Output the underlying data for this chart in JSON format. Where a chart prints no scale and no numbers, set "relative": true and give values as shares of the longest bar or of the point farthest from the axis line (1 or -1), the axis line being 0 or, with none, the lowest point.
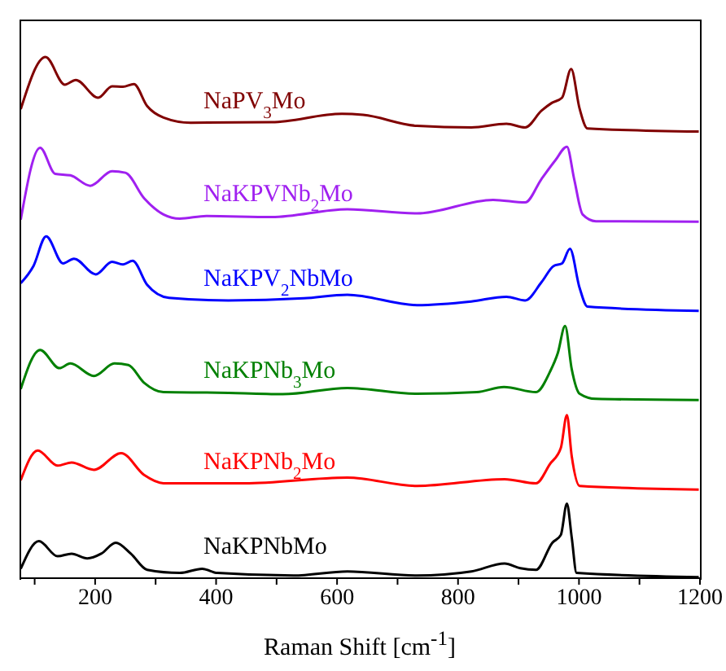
{
  "chart_data": {
    "type": "line",
    "relative": true,
    "xlabel": "Raman Shift [cm$^{-1}$]",
    "xlim": [
      75,
      1200
    ],
    "xticks": [
      {
        "value": 100,
        "label": null
      },
      200,
      {
        "value": 300,
        "label": null
      },
      400,
      {
        "value": 500,
        "label": null
      },
      600,
      {
        "value": 700,
        "label": null
      },
      800,
      {
        "value": 900,
        "label": null
      },
      1000,
      {
        "value": 1100,
        "label": null
      },
      1200
    ],
    "series": [
      {
        "name": "NaPV$_{3}$Mo",
        "color": "#800000",
        "x": [
          77,
          118,
          150,
          168,
          205,
          228,
          246,
          264,
          286,
          313,
          358,
          492,
          608,
          643,
          732,
          822,
          880,
          911,
          938,
          955,
          972,
          987,
          1001,
          1014,
          1198
        ],
        "values": [
          0.9,
          1.0,
          0.947,
          0.956,
          0.922,
          0.944,
          0.943,
          0.948,
          0.906,
          0.884,
          0.874,
          0.875,
          0.891,
          0.889,
          0.868,
          0.865,
          0.872,
          0.865,
          0.897,
          0.912,
          0.922,
          0.977,
          0.901,
          0.863,
          0.857
        ]
      },
      {
        "name": "NaKPVNb$_{2}$Mo",
        "color": "#a020f0",
        "x": [
          77,
          109,
          134,
          159,
          192,
          228,
          250,
          281,
          313,
          340,
          384,
          492,
          617,
          732,
          858,
          911,
          938,
          961,
          980,
          992,
          1006,
          1028,
          1198
        ],
        "values": [
          0.688,
          0.826,
          0.776,
          0.773,
          0.753,
          0.781,
          0.778,
          0.729,
          0.698,
          0.69,
          0.695,
          0.693,
          0.708,
          0.7,
          0.726,
          0.721,
          0.766,
          0.802,
          0.828,
          0.766,
          0.698,
          0.685,
          0.684
        ]
      },
      {
        "name": "NaKPV$_{2}$NbMo",
        "color": "#0000ff",
        "x": [
          77,
          98,
          119,
          147,
          165,
          201,
          228,
          246,
          262,
          286,
          322,
          420,
          545,
          617,
          732,
          822,
          880,
          911,
          938,
          958,
          972,
          985,
          1001,
          1014,
          1198
        ],
        "values": [
          0.566,
          0.599,
          0.656,
          0.604,
          0.613,
          0.583,
          0.607,
          0.602,
          0.609,
          0.563,
          0.538,
          0.533,
          0.537,
          0.544,
          0.524,
          0.531,
          0.54,
          0.533,
          0.568,
          0.599,
          0.604,
          0.632,
          0.557,
          0.521,
          0.513
        ]
      },
      {
        "name": "NaKPNb$_{3}$Mo",
        "color": "#008000",
        "x": [
          77,
          109,
          141,
          159,
          198,
          232,
          255,
          281,
          313,
          402,
          510,
          617,
          732,
          831,
          876,
          929,
          952,
          965,
          977,
          988,
          1001,
          1028,
          1198
        ],
        "values": [
          0.363,
          0.438,
          0.403,
          0.412,
          0.388,
          0.412,
          0.409,
          0.375,
          0.357,
          0.356,
          0.353,
          0.365,
          0.354,
          0.357,
          0.367,
          0.357,
          0.396,
          0.432,
          0.484,
          0.401,
          0.354,
          0.344,
          0.342
        ]
      },
      {
        "name": "NaKPNb$_{2}$Mo",
        "color": "#ff0000",
        "x": [
          77,
          105,
          138,
          161,
          198,
          243,
          281,
          313,
          447,
          617,
          732,
          877,
          929,
          952,
          970,
          980,
          988,
          1001,
          1198
        ],
        "values": [
          0.188,
          0.245,
          0.216,
          0.222,
          0.208,
          0.24,
          0.198,
          0.182,
          0.182,
          0.193,
          0.177,
          0.19,
          0.182,
          0.219,
          0.25,
          0.313,
          0.234,
          0.177,
          0.17
        ]
      },
      {
        "name": "NaKPNbMo",
        "color": "#000000",
        "x": [
          77,
          107,
          138,
          161,
          187,
          210,
          234,
          259,
          286,
          340,
          377,
          402,
          528,
          617,
          732,
          822,
          877,
          903,
          929,
          956,
          970,
          980,
          988,
          996,
          1198
        ],
        "values": [
          0.018,
          0.071,
          0.042,
          0.047,
          0.038,
          0.047,
          0.068,
          0.047,
          0.016,
          0.01,
          0.018,
          0.01,
          0.005,
          0.013,
          0.005,
          0.013,
          0.028,
          0.019,
          0.016,
          0.068,
          0.083,
          0.143,
          0.078,
          0.01,
          0.002
        ]
      }
    ]
  }
}
